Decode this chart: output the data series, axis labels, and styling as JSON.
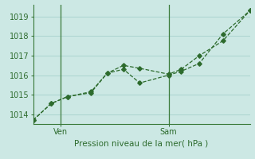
{
  "title": "Pression niveau de la mer( hPa )",
  "background_color": "#cce8e4",
  "grid_color": "#aad4cf",
  "line_color": "#2d6b2d",
  "spine_color": "#3a7a3a",
  "ylim": [
    1013.5,
    1019.6
  ],
  "yticks": [
    1014,
    1015,
    1016,
    1017,
    1018,
    1019
  ],
  "xlim": [
    0,
    12
  ],
  "ven_x": 1.5,
  "sam_x": 7.5,
  "num_x_gridlines": 12,
  "line1_x": [
    0,
    1.0,
    1.9,
    3.2,
    4.1,
    5.0,
    5.9,
    7.5,
    8.2,
    9.2,
    10.5,
    12.0
  ],
  "line1_y": [
    1013.7,
    1014.55,
    1014.9,
    1015.1,
    1016.1,
    1016.5,
    1016.35,
    1016.05,
    1016.3,
    1017.0,
    1017.75,
    1019.3
  ],
  "line2_x": [
    0,
    1.0,
    1.9,
    3.2,
    4.1,
    5.0,
    5.9,
    7.5,
    8.2,
    9.2,
    10.5,
    12.0
  ],
  "line2_y": [
    1013.7,
    1014.55,
    1014.9,
    1015.15,
    1016.1,
    1016.3,
    1015.6,
    1016.0,
    1016.2,
    1016.6,
    1018.1,
    1019.3
  ]
}
